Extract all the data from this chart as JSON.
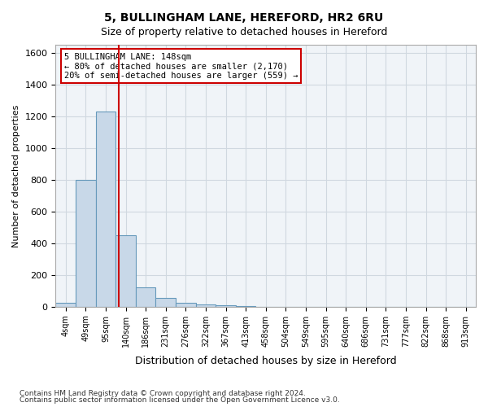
{
  "title1": "5, BULLINGHAM LANE, HEREFORD, HR2 6RU",
  "title2": "Size of property relative to detached houses in Hereford",
  "xlabel": "Distribution of detached houses by size in Hereford",
  "ylabel": "Number of detached properties",
  "bin_labels": [
    "4sqm",
    "49sqm",
    "95sqm",
    "140sqm",
    "186sqm",
    "231sqm",
    "276sqm",
    "322sqm",
    "367sqm",
    "413sqm",
    "458sqm",
    "504sqm",
    "549sqm",
    "595sqm",
    "640sqm",
    "686sqm",
    "731sqm",
    "777sqm",
    "822sqm",
    "868sqm",
    "913sqm"
  ],
  "bar_heights": [
    25,
    800,
    1230,
    450,
    120,
    55,
    25,
    15,
    10,
    5,
    0,
    0,
    0,
    0,
    0,
    0,
    0,
    0,
    0,
    0,
    0
  ],
  "bar_color": "#c8d8e8",
  "bar_edge_color": "#6699bb",
  "red_line_x": 2.67,
  "red_line_color": "#cc0000",
  "ylim": [
    0,
    1650
  ],
  "yticks": [
    0,
    200,
    400,
    600,
    800,
    1000,
    1200,
    1400,
    1600
  ],
  "annotation_text": "5 BULLINGHAM LANE: 148sqm\n← 80% of detached houses are smaller (2,170)\n20% of semi-detached houses are larger (559) →",
  "annotation_box_color": "#ffffff",
  "annotation_box_edge": "#cc0000",
  "footnote1": "Contains HM Land Registry data © Crown copyright and database right 2024.",
  "footnote2": "Contains public sector information licensed under the Open Government Licence v3.0.",
  "grid_color": "#d0d8e0",
  "bg_color": "#f0f4f8"
}
